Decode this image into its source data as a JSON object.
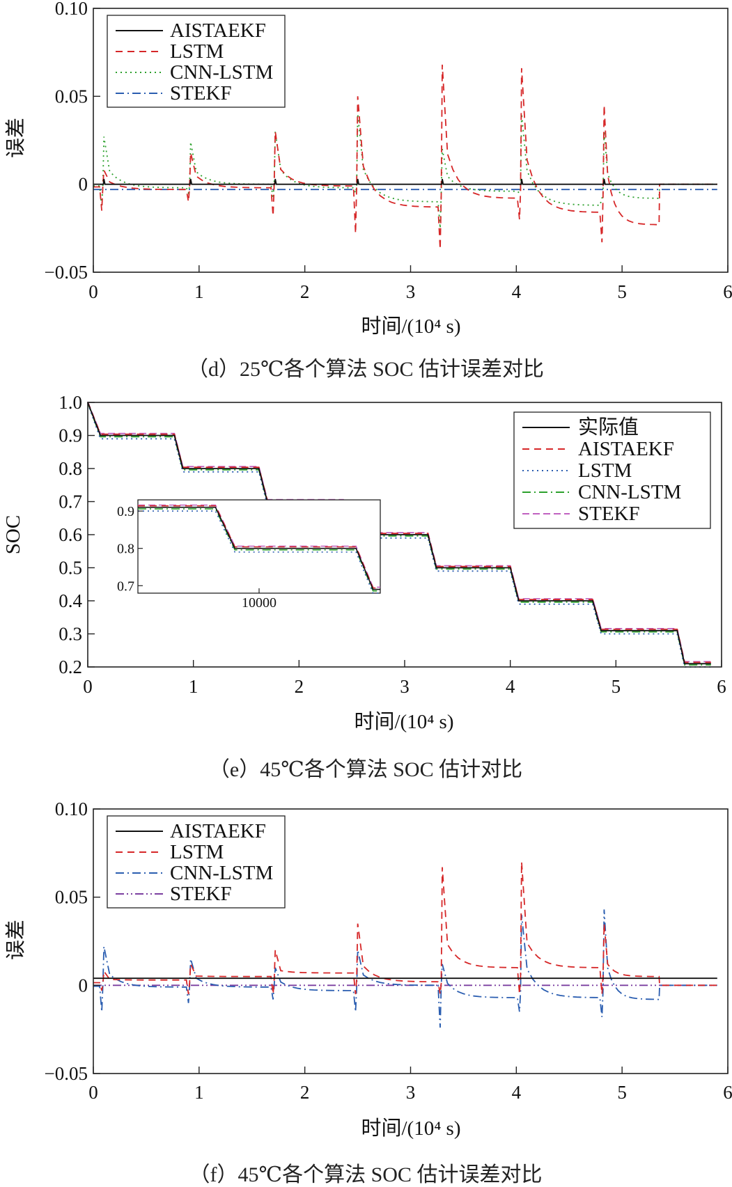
{
  "chart_data": [
    {
      "type": "line",
      "id": "d",
      "caption": "（d）25℃各个算法 SOC 估计误差对比",
      "xlabel": "时间/(10⁴ s)",
      "ylabel": "误差",
      "xlim": [
        0,
        6
      ],
      "ylim": [
        -0.05,
        0.1
      ],
      "xticks": [
        "0",
        "1",
        "2",
        "3",
        "4",
        "5",
        "6"
      ],
      "yticks": [
        "0.10",
        "0.05",
        "0",
        "−0.05"
      ],
      "legend_position": "top-left",
      "step_times": [
        0.1,
        0.92,
        1.72,
        2.5,
        3.3,
        4.05,
        4.83
      ],
      "end_time": 5.35,
      "series": [
        {
          "name": "AISTAEKF",
          "color": "#111111",
          "dash": "",
          "peak": 0.003,
          "tail": 0.0,
          "offset": 0.0,
          "bump": 0.0,
          "jitter": 0.0
        },
        {
          "name": "LSTM",
          "color": "#d62728",
          "dash": "10,7",
          "peaks": [
            0.008,
            0.018,
            0.03,
            0.05,
            0.068,
            0.066,
            0.045
          ],
          "drops": [
            -0.015,
            -0.01,
            -0.018,
            -0.028,
            -0.037,
            -0.02,
            -0.033
          ],
          "tails": [
            -0.003,
            -0.002,
            -0.001,
            -0.013,
            -0.008,
            -0.016,
            -0.023
          ]
        },
        {
          "name": "CNN-LSTM",
          "color": "#2ca02c",
          "dash": "2,5",
          "peaks": [
            0.027,
            0.024,
            0.03,
            0.04,
            0.02,
            0.04,
            0.03
          ],
          "drops": [
            -0.013,
            -0.005,
            -0.008,
            -0.005,
            -0.025,
            -0.005,
            -0.008
          ],
          "tails": [
            -0.002,
            0.0,
            -0.002,
            -0.01,
            -0.004,
            -0.012,
            -0.008
          ]
        },
        {
          "name": "STEKF",
          "color": "#2a5db0",
          "dash": "12,5,2,5",
          "value": -0.003
        }
      ]
    },
    {
      "type": "line",
      "id": "e",
      "caption": "（e）45℃各个算法 SOC 估计对比",
      "xlabel": "时间/(10⁴ s)",
      "ylabel": "SOC",
      "xlim": [
        0,
        6
      ],
      "ylim": [
        0.2,
        1.0
      ],
      "xticks": [
        "0",
        "1",
        "2",
        "3",
        "4",
        "5",
        "6"
      ],
      "yticks": [
        "1.0",
        "0.9",
        "0.8",
        "0.7",
        "0.6",
        "0.5",
        "0.4",
        "0.3",
        "0.2"
      ],
      "legend_position": "top-right",
      "levels": [
        0.9,
        0.8,
        0.7,
        0.6,
        0.5,
        0.4,
        0.31,
        0.21
      ],
      "step_starts": [
        0.0,
        0.82,
        1.62,
        2.42,
        3.22,
        4.0,
        4.78,
        5.58
      ],
      "step_ends": [
        0.12,
        0.9,
        1.7,
        2.5,
        3.3,
        4.08,
        4.86,
        5.65
      ],
      "end_time": 5.9,
      "series": [
        {
          "name": "实际值",
          "color": "#111111",
          "dash": "",
          "bias": 0.0
        },
        {
          "name": "AISTAEKF",
          "color": "#d62728",
          "dash": "10,7",
          "bias": 0.004
        },
        {
          "name": "LSTM",
          "color": "#2a5db0",
          "dash": "2,5",
          "bias": -0.01
        },
        {
          "name": "CNN-LSTM",
          "color": "#2ca02c",
          "dash": "12,5,2,5",
          "bias": -0.004
        },
        {
          "name": "STEKF",
          "color": "#c060c0",
          "dash": "10,5",
          "bias": 0.006
        }
      ],
      "inset": {
        "xtick": "10000",
        "yticks": [
          "0.9",
          "0.8",
          "0.7"
        ],
        "xlim": [
          5000,
          15000
        ],
        "ylim": [
          0.68,
          0.93
        ]
      }
    },
    {
      "type": "line",
      "id": "f",
      "caption": "（f）45℃各个算法 SOC 估计误差对比",
      "xlabel": "时间/(10⁴ s)",
      "ylabel": "误差",
      "xlim": [
        0,
        6
      ],
      "ylim": [
        -0.05,
        0.1
      ],
      "xticks": [
        "0",
        "1",
        "2",
        "3",
        "4",
        "5",
        "6"
      ],
      "yticks": [
        "0.10",
        "0.05",
        "0",
        "−0.05"
      ],
      "legend_position": "top-left",
      "step_times": [
        0.1,
        0.92,
        1.72,
        2.5,
        3.3,
        4.05,
        4.83
      ],
      "end_time": 5.35,
      "series": [
        {
          "name": "AISTAEKF",
          "color": "#111111",
          "dash": "",
          "value": 0.004
        },
        {
          "name": "LSTM",
          "color": "#d62728",
          "dash": "10,7",
          "peaks": [
            0.008,
            0.012,
            0.02,
            0.035,
            0.067,
            0.07,
            0.035
          ],
          "drops": [
            -0.003,
            -0.005,
            -0.005,
            -0.005,
            -0.005,
            -0.005,
            -0.005
          ],
          "tails": [
            0.003,
            0.005,
            0.007,
            0.002,
            0.01,
            0.01,
            0.005
          ]
        },
        {
          "name": "CNN-LSTM",
          "color": "#2a5db0",
          "dash": "12,5,2,5",
          "peaks": [
            0.022,
            0.015,
            0.01,
            0.02,
            0.012,
            0.04,
            0.043
          ],
          "drops": [
            -0.015,
            -0.01,
            -0.008,
            -0.015,
            -0.024,
            -0.015,
            -0.018
          ],
          "tails": [
            -0.001,
            -0.001,
            -0.003,
            0.0,
            -0.007,
            -0.007,
            -0.008
          ]
        },
        {
          "name": "STEKF",
          "color": "#7b3fa0",
          "dash": "12,4,2,4,2,4",
          "value": 0.0
        }
      ]
    }
  ]
}
